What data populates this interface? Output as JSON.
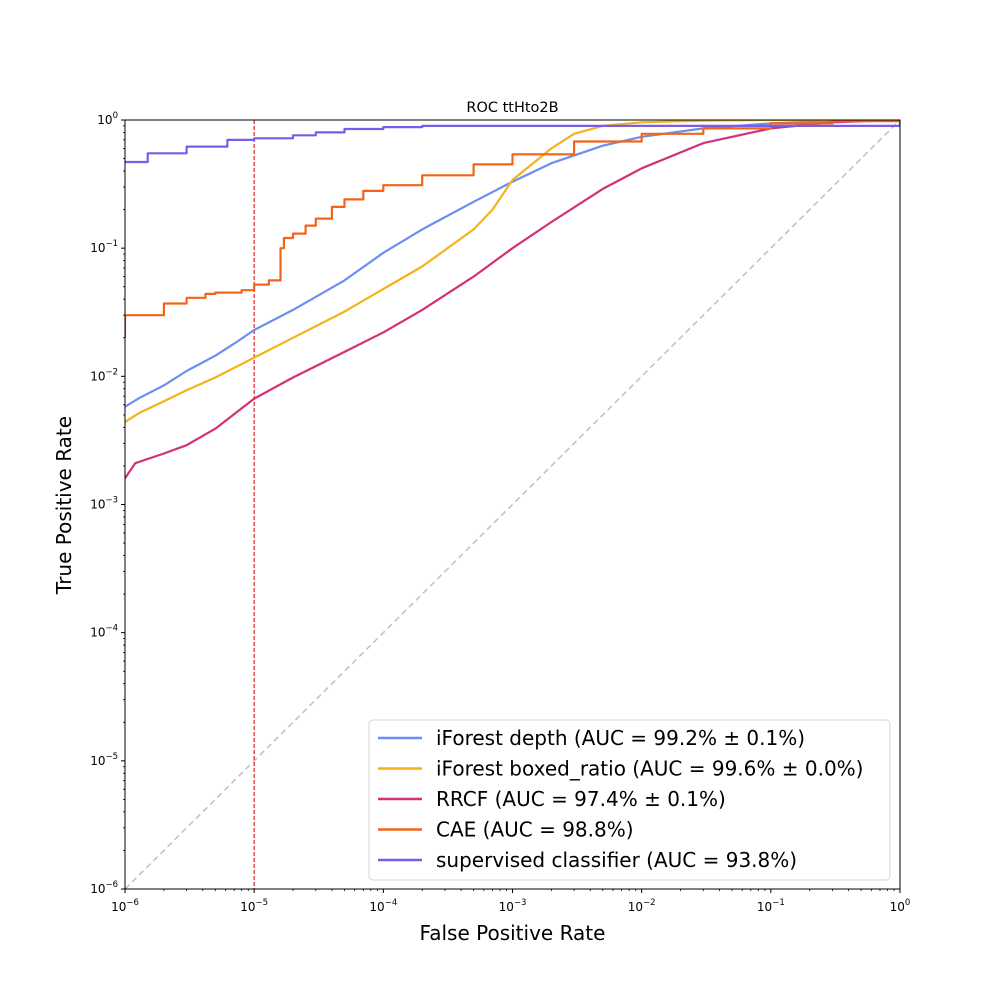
{
  "chart_data": {
    "type": "line",
    "title": "ROC ttHto2B",
    "xlabel": "False Positive Rate",
    "ylabel": "True Positive Rate",
    "xscale": "log",
    "yscale": "log",
    "xlim": [
      1e-06,
      1
    ],
    "ylim": [
      1e-06,
      1
    ],
    "x_ticks": [
      {
        "base": "10",
        "exp": "−6",
        "value": 1e-06
      },
      {
        "base": "10",
        "exp": "−5",
        "value": 1e-05
      },
      {
        "base": "10",
        "exp": "−4",
        "value": 0.0001
      },
      {
        "base": "10",
        "exp": "−3",
        "value": 0.001
      },
      {
        "base": "10",
        "exp": "−2",
        "value": 0.01
      },
      {
        "base": "10",
        "exp": "−1",
        "value": 0.1
      },
      {
        "base": "10",
        "exp": "0",
        "value": 1
      }
    ],
    "y_ticks": [
      {
        "base": "10",
        "exp": "−6",
        "value": 1e-06
      },
      {
        "base": "10",
        "exp": "−5",
        "value": 1e-05
      },
      {
        "base": "10",
        "exp": "−4",
        "value": 0.0001
      },
      {
        "base": "10",
        "exp": "−3",
        "value": 0.001
      },
      {
        "base": "10",
        "exp": "−2",
        "value": 0.01
      },
      {
        "base": "10",
        "exp": "−1",
        "value": 0.1
      },
      {
        "base": "10",
        "exp": "0",
        "value": 1
      }
    ],
    "grid": false,
    "legend_position": "lower-right",
    "reference_lines": [
      {
        "kind": "diagonal",
        "color": "#bfbfbf",
        "style": "dashed",
        "points": [
          [
            1e-06,
            1e-06
          ],
          [
            1,
            1
          ]
        ]
      },
      {
        "kind": "vertical",
        "color": "#e31a1c",
        "style": "dashed",
        "x": 1e-05
      }
    ],
    "series": [
      {
        "name": "iForest depth (AUC = 99.2% ± 0.1%)",
        "color": "#6b8ff0",
        "step": false,
        "points": [
          [
            1e-06,
            0.0058
          ],
          [
            1.3e-06,
            0.0068
          ],
          [
            2e-06,
            0.0085
          ],
          [
            3e-06,
            0.011
          ],
          [
            5e-06,
            0.0145
          ],
          [
            7e-06,
            0.018
          ],
          [
            1e-05,
            0.023
          ],
          [
            2e-05,
            0.033
          ],
          [
            5e-05,
            0.056
          ],
          [
            0.0001,
            0.092
          ],
          [
            0.0002,
            0.14
          ],
          [
            0.0005,
            0.23
          ],
          [
            0.001,
            0.33
          ],
          [
            0.002,
            0.46
          ],
          [
            0.005,
            0.63
          ],
          [
            0.01,
            0.74
          ],
          [
            0.03,
            0.86
          ],
          [
            0.1,
            0.94
          ],
          [
            0.3,
            0.98
          ],
          [
            1,
            1
          ]
        ]
      },
      {
        "name": "iForest boxed_ratio (AUC = 99.6% ± 0.0%)",
        "color": "#f5b21b",
        "step": false,
        "points": [
          [
            1e-06,
            0.0044
          ],
          [
            1.3e-06,
            0.0052
          ],
          [
            2e-06,
            0.0064
          ],
          [
            3e-06,
            0.0078
          ],
          [
            5e-06,
            0.0098
          ],
          [
            1e-05,
            0.014
          ],
          [
            2e-05,
            0.02
          ],
          [
            5e-05,
            0.032
          ],
          [
            0.0001,
            0.048
          ],
          [
            0.0002,
            0.072
          ],
          [
            0.0005,
            0.14
          ],
          [
            0.0007,
            0.2
          ],
          [
            0.001,
            0.34
          ],
          [
            0.002,
            0.6
          ],
          [
            0.003,
            0.78
          ],
          [
            0.005,
            0.9
          ],
          [
            0.01,
            0.96
          ],
          [
            0.03,
            0.99
          ],
          [
            0.1,
            1
          ],
          [
            1,
            1
          ]
        ]
      },
      {
        "name": "RRCF (AUC = 97.4% ± 0.1%)",
        "color": "#d3307a",
        "step": false,
        "points": [
          [
            1e-06,
            0.0016
          ],
          [
            1.2e-06,
            0.0021
          ],
          [
            2e-06,
            0.0025
          ],
          [
            3e-06,
            0.0029
          ],
          [
            5e-06,
            0.0039
          ],
          [
            1e-05,
            0.0067
          ],
          [
            2e-05,
            0.0098
          ],
          [
            5e-05,
            0.0155
          ],
          [
            0.0001,
            0.022
          ],
          [
            0.0002,
            0.033
          ],
          [
            0.0005,
            0.06
          ],
          [
            0.001,
            0.1
          ],
          [
            0.002,
            0.16
          ],
          [
            0.005,
            0.29
          ],
          [
            0.01,
            0.42
          ],
          [
            0.03,
            0.66
          ],
          [
            0.1,
            0.86
          ],
          [
            0.3,
            0.96
          ],
          [
            1,
            1
          ]
        ]
      },
      {
        "name": "CAE (AUC = 98.8%)",
        "color": "#f2641a",
        "step": true,
        "points": [
          [
            1e-06,
            0.02
          ],
          [
            1e-06,
            0.03
          ],
          [
            1.5e-06,
            0.03
          ],
          [
            2e-06,
            0.031
          ],
          [
            2e-06,
            0.037
          ],
          [
            3e-06,
            0.038
          ],
          [
            3e-06,
            0.041
          ],
          [
            4.2e-06,
            0.044
          ],
          [
            5e-06,
            0.045
          ],
          [
            8e-06,
            0.047
          ],
          [
            1e-05,
            0.052
          ],
          [
            1.3e-05,
            0.056
          ],
          [
            1.6e-05,
            0.07
          ],
          [
            1.6e-05,
            0.1
          ],
          [
            1.7e-05,
            0.12
          ],
          [
            2e-05,
            0.13
          ],
          [
            2.5e-05,
            0.15
          ],
          [
            3e-05,
            0.17
          ],
          [
            4e-05,
            0.21
          ],
          [
            5e-05,
            0.24
          ],
          [
            7e-05,
            0.28
          ],
          [
            0.0001,
            0.31
          ],
          [
            0.0002,
            0.37
          ],
          [
            0.0005,
            0.45
          ],
          [
            0.001,
            0.54
          ],
          [
            0.003,
            0.68
          ],
          [
            0.01,
            0.78
          ],
          [
            0.03,
            0.86
          ],
          [
            0.1,
            0.94
          ],
          [
            0.3,
            0.98
          ],
          [
            1,
            1
          ]
        ]
      },
      {
        "name": "supervised classifier (AUC = 93.8%)",
        "color": "#7a5ce6",
        "step": true,
        "points": [
          [
            1e-06,
            0.47
          ],
          [
            1.5e-06,
            0.47
          ],
          [
            1.5e-06,
            0.55
          ],
          [
            3e-06,
            0.55
          ],
          [
            3e-06,
            0.62
          ],
          [
            6.2e-06,
            0.62
          ],
          [
            6.2e-06,
            0.7
          ],
          [
            1e-05,
            0.72
          ],
          [
            2e-05,
            0.76
          ],
          [
            3e-05,
            0.8
          ],
          [
            5e-05,
            0.85
          ],
          [
            0.0001,
            0.88
          ],
          [
            0.0002,
            0.9
          ],
          [
            0.001,
            0.9
          ],
          [
            0.01,
            0.9
          ],
          [
            0.1,
            0.9
          ],
          [
            0.5,
            0.9
          ],
          [
            1,
            1
          ]
        ]
      }
    ]
  }
}
